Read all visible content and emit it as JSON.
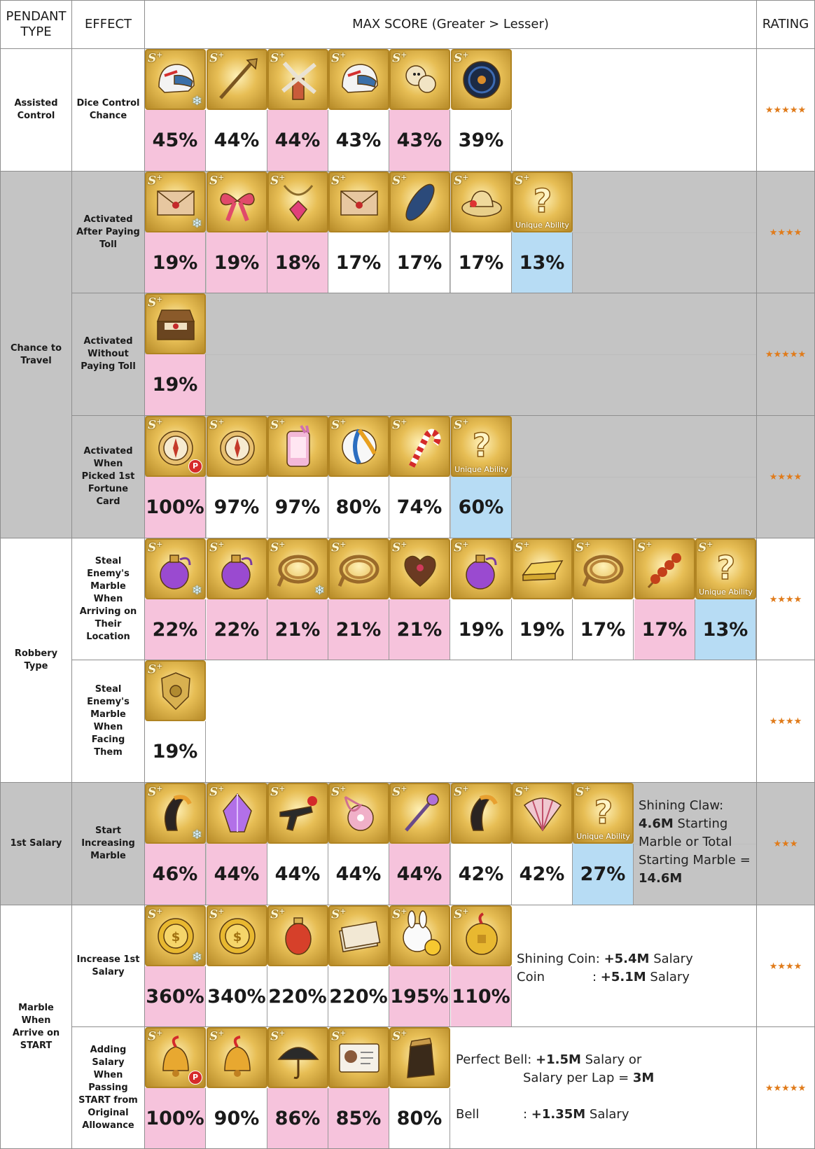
{
  "headers": {
    "pendant_type": "PENDANT TYPE",
    "effect": "EFFECT",
    "max_score": "MAX SCORE (Greater > Lesser)",
    "rating": "RATING"
  },
  "pendant_types": [
    {
      "label": "Assisted Control"
    },
    {
      "label": "Chance to Travel"
    },
    {
      "label": "Robbery Type"
    },
    {
      "label": "1st Salary"
    },
    {
      "label": "Marble When Arrive on START"
    }
  ],
  "rows": [
    {
      "effect": "Dice Control Chance",
      "rating": "★★★★★",
      "items": [
        {
          "icon": "helmet-icon",
          "value": "45%",
          "color": "pink",
          "snow": true
        },
        {
          "icon": "spear-icon",
          "value": "44%",
          "color": "white"
        },
        {
          "icon": "windmill-icon",
          "value": "44%",
          "color": "pink"
        },
        {
          "icon": "helmet-icon",
          "value": "43%",
          "color": "white"
        },
        {
          "icon": "monkey-icon",
          "value": "43%",
          "color": "pink"
        },
        {
          "icon": "vinyl-record-icon",
          "value": "39%",
          "color": "white"
        }
      ]
    },
    {
      "effect": "Activated After Paying Toll",
      "rating": "★★★★",
      "items": [
        {
          "icon": "envelope-icon",
          "value": "19%",
          "color": "pink",
          "snow": true
        },
        {
          "icon": "ribbon-icon",
          "value": "19%",
          "color": "pink"
        },
        {
          "icon": "gem-necklace-icon",
          "value": "18%",
          "color": "pink"
        },
        {
          "icon": "envelope-icon",
          "value": "17%",
          "color": "white"
        },
        {
          "icon": "surfboard-icon",
          "value": "17%",
          "color": "white"
        },
        {
          "icon": "straw-hat-icon",
          "value": "17%",
          "color": "white"
        },
        {
          "icon": "question-icon",
          "value": "13%",
          "color": "blue",
          "unique": "Unique Ability"
        }
      ]
    },
    {
      "effect": "Activated Without Paying Toll",
      "rating": "★★★★★",
      "items": [
        {
          "icon": "treasure-box-icon",
          "value": "19%",
          "color": "pink"
        }
      ]
    },
    {
      "effect": "Activated When Picked 1st Fortune Card",
      "rating": "★★★★",
      "items": [
        {
          "icon": "compass-icon",
          "value": "100%",
          "color": "pink",
          "pbadge": "P"
        },
        {
          "icon": "compass-icon",
          "value": "97%",
          "color": "white"
        },
        {
          "icon": "phone-icon",
          "value": "97%",
          "color": "white"
        },
        {
          "icon": "beach-ball-icon",
          "value": "80%",
          "color": "white"
        },
        {
          "icon": "candy-cane-icon",
          "value": "74%",
          "color": "white"
        },
        {
          "icon": "question-icon",
          "value": "60%",
          "color": "blue",
          "unique": "Unique Ability"
        }
      ]
    },
    {
      "effect": "Steal Enemy's Marble When Arriving on Their Location",
      "rating": "★★★★",
      "items": [
        {
          "icon": "perfume-icon",
          "value": "22%",
          "color": "pink",
          "snow": true
        },
        {
          "icon": "perfume-icon",
          "value": "22%",
          "color": "pink"
        },
        {
          "icon": "rope-icon",
          "value": "21%",
          "color": "pink",
          "snow": true
        },
        {
          "icon": "rope-icon",
          "value": "21%",
          "color": "pink"
        },
        {
          "icon": "chocolate-box-icon",
          "value": "21%",
          "color": "pink"
        },
        {
          "icon": "perfume-icon",
          "value": "19%",
          "color": "white"
        },
        {
          "icon": "gold-bar-icon",
          "value": "19%",
          "color": "white"
        },
        {
          "icon": "rope-icon",
          "value": "17%",
          "color": "white"
        },
        {
          "icon": "candied-fruit-icon",
          "value": "17%",
          "color": "pink"
        },
        {
          "icon": "question-icon",
          "value": "13%",
          "color": "blue",
          "unique": "Unique Ability"
        }
      ]
    },
    {
      "effect": "Steal Enemy's Marble When Facing Them",
      "rating": "★★★★",
      "items": [
        {
          "icon": "police-badge-icon",
          "value": "19%",
          "color": "white"
        }
      ]
    },
    {
      "effect": "Start Increasing Marble",
      "rating": "★★★",
      "items": [
        {
          "icon": "claw-icon",
          "value": "46%",
          "color": "pink",
          "snow": true
        },
        {
          "icon": "crystal-icon",
          "value": "44%",
          "color": "pink"
        },
        {
          "icon": "gun-icon",
          "value": "44%",
          "color": "white"
        },
        {
          "icon": "purse-icon",
          "value": "44%",
          "color": "white"
        },
        {
          "icon": "wand-icon",
          "value": "44%",
          "color": "pink"
        },
        {
          "icon": "claw-icon",
          "value": "42%",
          "color": "white"
        },
        {
          "icon": "fan-icon",
          "value": "42%",
          "color": "white"
        },
        {
          "icon": "question-icon",
          "value": "27%",
          "color": "blue",
          "unique": "Unique Ability"
        }
      ],
      "note": {
        "line1": "Shining Claw:",
        "bold1": "4.6M",
        "line2": " Starting",
        "line3": "Marble or Total",
        "line4": "Starting Marble =",
        "bold2": "14.6M"
      }
    },
    {
      "effect": "Increase 1st Salary",
      "rating": "★★★★",
      "items": [
        {
          "icon": "gold-coin-icon",
          "value": "360%",
          "color": "pink",
          "snow": true
        },
        {
          "icon": "gold-coin-icon",
          "value": "340%",
          "color": "white"
        },
        {
          "icon": "ruby-pendant-icon",
          "value": "220%",
          "color": "white"
        },
        {
          "icon": "cash-stack-icon",
          "value": "220%",
          "color": "white"
        },
        {
          "icon": "bunny-chick-icon",
          "value": "195%",
          "color": "pink"
        },
        {
          "icon": "lucky-coin-icon",
          "value": "110%",
          "color": "pink"
        }
      ],
      "note": {
        "a_label": "Shining Coin: ",
        "a_bold": "+5.4M",
        "a_tail": " Salary",
        "b_label": "Coin",
        "b_sep": ": ",
        "b_bold": "+5.1M",
        "b_tail": " Salary"
      }
    },
    {
      "effect": "Adding Salary When Passing START from Original Allowance",
      "rating": "★★★★★",
      "items": [
        {
          "icon": "bell-icon",
          "value": "100%",
          "color": "pink",
          "pbadge": "P"
        },
        {
          "icon": "bell-icon",
          "value": "90%",
          "color": "white"
        },
        {
          "icon": "umbrella-icon",
          "value": "86%",
          "color": "pink"
        },
        {
          "icon": "id-card-icon",
          "value": "85%",
          "color": "pink"
        },
        {
          "icon": "leather-pouch-icon",
          "value": "80%",
          "color": "white"
        }
      ],
      "note": {
        "a_label": "Perfect Bell: ",
        "a_bold": "+1.5M",
        "a_tail": " Salary or",
        "a2_label": "Salary per Lap = ",
        "a2_bold": "3M",
        "b_label": "Bell",
        "b_sep": ": ",
        "b_bold": "+1.35M",
        "b_tail": " Salary"
      }
    }
  ]
}
